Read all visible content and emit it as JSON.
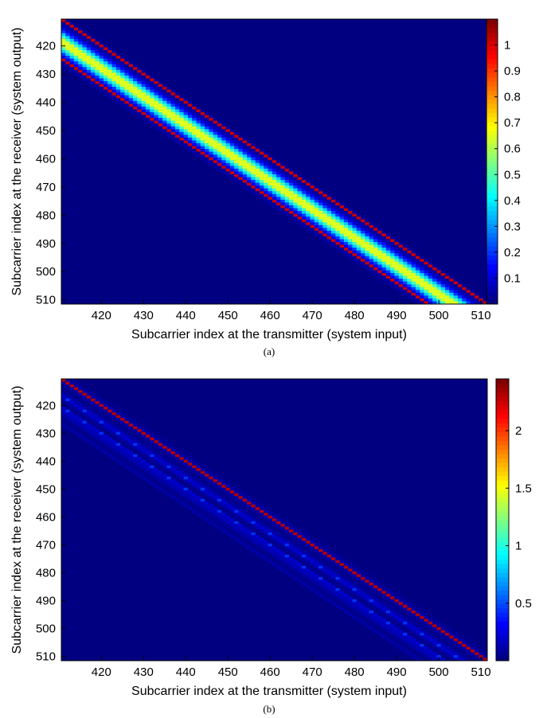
{
  "chart_data": [
    {
      "type": "heatmap",
      "caption": "(a)",
      "xlabel": "Subcarrier index at the transmitter (system input)",
      "ylabel": "Subcarrier index at the receiver (system output)",
      "xlim": [
        411,
        512
      ],
      "ylim": [
        411,
        512
      ],
      "y_reversed": true,
      "xticks": [
        420,
        430,
        440,
        450,
        460,
        470,
        480,
        490,
        500,
        510
      ],
      "yticks": [
        420,
        430,
        440,
        450,
        460,
        470,
        480,
        490,
        500,
        510
      ],
      "colormap": "jet",
      "clim": [
        0,
        1.1
      ],
      "colorbar_ticks": [
        0.1,
        0.2,
        0.3,
        0.4,
        0.5,
        0.6,
        0.7,
        0.8,
        0.9,
        1
      ],
      "structure": "banded matrix; peak ~0.7 along diagonal y = x + 8, band half-width ~6; red stripes at y = x and y = x + 14"
    },
    {
      "type": "heatmap",
      "caption": "(b)",
      "xlabel": "Subcarrier index at the transmitter (system input)",
      "ylabel": "Subcarrier index at the receiver (system output)",
      "xlim": [
        411,
        512
      ],
      "ylim": [
        411,
        512
      ],
      "y_reversed": true,
      "xticks": [
        420,
        430,
        440,
        450,
        460,
        470,
        480,
        490,
        500,
        510
      ],
      "yticks": [
        420,
        430,
        440,
        450,
        460,
        470,
        480,
        490,
        500,
        510
      ],
      "colormap": "jet",
      "clim": [
        0,
        2.45
      ],
      "colorbar_ticks": [
        0.5,
        1,
        1.5,
        2
      ],
      "structure": "main diagonal y = x with value ~2.3; faint side diagonals up to ~0.4 extending to y = x + 16"
    }
  ]
}
